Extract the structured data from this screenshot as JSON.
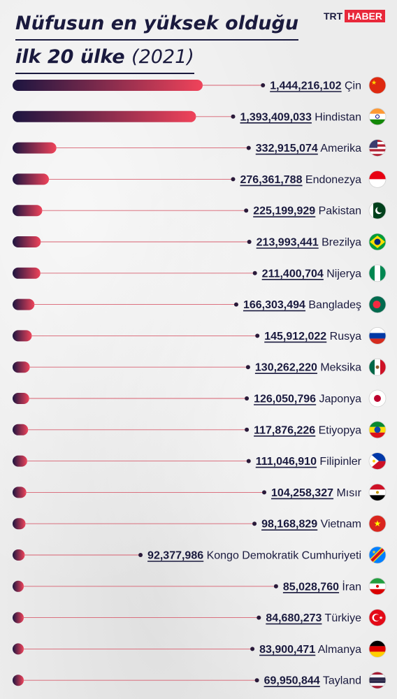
{
  "header": {
    "title_line1": "Nüfusun en yüksek olduğu",
    "title_line2": "ilk 20 ülke",
    "title_year": "(2021)"
  },
  "logo": {
    "part1": "TRT",
    "part2": "HABER"
  },
  "colors": {
    "bar_start": "#1c1540",
    "bar_end": "#f0435a",
    "line": "#d86070",
    "dot": "#2a1a3a",
    "text": "#1a1a3e"
  },
  "chart_data": {
    "type": "bar",
    "orientation": "horizontal",
    "title": "Nüfusun en yüksek olduğu ilk 20 ülke (2021)",
    "categories": [
      "Çin",
      "Hindistan",
      "Amerika",
      "Endonezya",
      "Pakistan",
      "Brezilya",
      "Nijerya",
      "Bangladeş",
      "Rusya",
      "Meksika",
      "Japonya",
      "Etiyopya",
      "Filipinler",
      "Mısır",
      "Vietnam",
      "Kongo Demokratik Cumhuriyeti",
      "İran",
      "Türkiye",
      "Almanya",
      "Tayland"
    ],
    "values": [
      1444216102,
      1393409033,
      332915074,
      276361788,
      225199929,
      213993441,
      211400704,
      166303494,
      145912022,
      130262220,
      126050796,
      117876226,
      111046910,
      104258327,
      98168829,
      92377986,
      85028760,
      84680273,
      83900471,
      69950844
    ],
    "value_labels": [
      "1,444,216,102",
      "1,393,409,033",
      "332,915,074",
      "276,361,788",
      "225,199,929",
      "213,993,441",
      "211,400,704",
      "166,303,494",
      "145,912,022",
      "130,262,220",
      "126,050,796",
      "117,876,226",
      "111,046,910",
      "104,258,327",
      "98,168,829",
      "92,377,986",
      "85,028,760",
      "84,680,273",
      "83,900,471",
      "69,950,844"
    ],
    "flags": [
      "china-flag-icon",
      "india-flag-icon",
      "usa-flag-icon",
      "indonesia-flag-icon",
      "pakistan-flag-icon",
      "brazil-flag-icon",
      "nigeria-flag-icon",
      "bangladesh-flag-icon",
      "russia-flag-icon",
      "mexico-flag-icon",
      "japan-flag-icon",
      "ethiopia-flag-icon",
      "philippines-flag-icon",
      "egypt-flag-icon",
      "vietnam-flag-icon",
      "congo-dr-flag-icon",
      "iran-flag-icon",
      "turkey-flag-icon",
      "germany-flag-icon",
      "thailand-flag-icon"
    ],
    "xlabel": "",
    "ylabel": "",
    "grid": false
  }
}
